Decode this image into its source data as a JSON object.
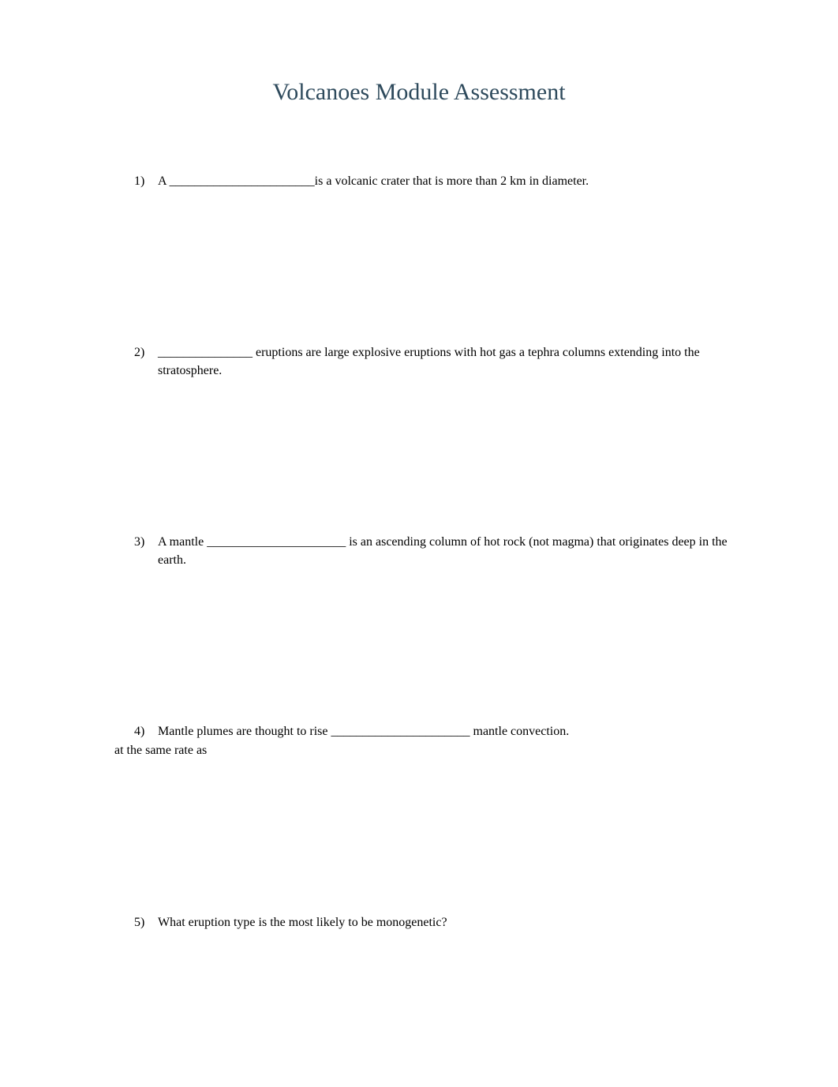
{
  "title": "Volcanoes Module Assessment",
  "questions": {
    "q1": {
      "number": "1)",
      "text": "A _______________________is a volcanic crater that is more than 2 km in diameter."
    },
    "q2": {
      "number": "2)",
      "text": "_______________ eruptions are large explosive eruptions with hot gas a tephra columns extending into the stratosphere."
    },
    "q3": {
      "number": "3)",
      "text": "A mantle ______________________ is an ascending column of hot rock (not magma) that originates deep in the earth."
    },
    "q4": {
      "number": "4)",
      "text": "Mantle plumes are thought to rise ______________________ mantle convection.",
      "answer": "at the same rate as"
    },
    "q5": {
      "number": "5)",
      "text": "What eruption type is the most likely to be monogenetic?"
    }
  },
  "colors": {
    "title_color": "#2e4a5c",
    "text_color": "#000000",
    "background_color": "#ffffff"
  },
  "typography": {
    "title_fontsize": 30,
    "body_fontsize": 16,
    "font_family": "Times New Roman"
  }
}
